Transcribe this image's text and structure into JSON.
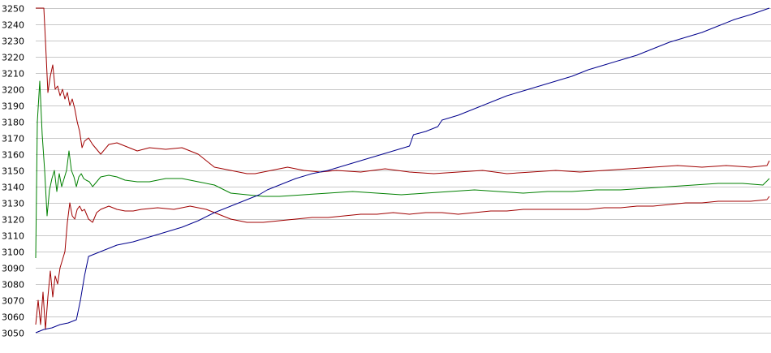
{
  "chart_data": {
    "type": "line",
    "title": "",
    "xlabel": "",
    "ylabel": "",
    "ylim": [
      3050,
      3250
    ],
    "yticks": [
      3050,
      3060,
      3070,
      3080,
      3090,
      3100,
      3110,
      3120,
      3130,
      3140,
      3150,
      3160,
      3170,
      3180,
      3190,
      3200,
      3210,
      3220,
      3230,
      3240,
      3250
    ],
    "grid": true,
    "legend": "none",
    "colors": {
      "grid": "#c8c8c8",
      "background": "#ffffff",
      "axis_text": "#000000"
    },
    "series": [
      {
        "key": "upper",
        "color": "#a00000",
        "x": [
          0,
          10,
          12,
          15,
          18,
          21,
          24,
          27,
          30,
          33,
          36,
          39,
          42,
          45,
          48,
          51,
          54,
          57,
          60,
          65,
          70,
          80,
          90,
          100,
          110,
          125,
          140,
          160,
          180,
          200,
          220,
          240,
          260,
          270,
          290,
          310,
          330,
          350,
          370,
          400,
          430,
          460,
          490,
          520,
          550,
          580,
          610,
          640,
          670,
          700,
          730,
          760,
          790,
          820,
          850,
          880,
          900,
          903
        ],
        "y": [
          3250,
          3250,
          3230,
          3198,
          3208,
          3215,
          3200,
          3202,
          3196,
          3200,
          3194,
          3198,
          3190,
          3194,
          3188,
          3180,
          3174,
          3164,
          3168,
          3170,
          3166,
          3160,
          3166,
          3167,
          3165,
          3162,
          3164,
          3163,
          3164,
          3160,
          3152,
          3150,
          3148,
          3148,
          3150,
          3152,
          3150,
          3149,
          3150,
          3149,
          3151,
          3149,
          3148,
          3149,
          3150,
          3148,
          3149,
          3150,
          3149,
          3150,
          3151,
          3152,
          3153,
          3152,
          3153,
          3152,
          3153,
          3156
        ]
      },
      {
        "key": "middle",
        "color": "#008000",
        "x": [
          0,
          2,
          5,
          8,
          11,
          14,
          17,
          20,
          23,
          26,
          29,
          32,
          35,
          38,
          41,
          44,
          47,
          50,
          53,
          56,
          59,
          62,
          66,
          70,
          80,
          90,
          100,
          110,
          125,
          140,
          160,
          180,
          200,
          220,
          240,
          260,
          280,
          300,
          330,
          360,
          390,
          420,
          450,
          480,
          510,
          540,
          570,
          600,
          630,
          660,
          690,
          720,
          750,
          780,
          810,
          840,
          870,
          895,
          903
        ],
        "y": [
          3096,
          3180,
          3205,
          3172,
          3150,
          3122,
          3138,
          3145,
          3150,
          3137,
          3148,
          3140,
          3145,
          3150,
          3162,
          3150,
          3146,
          3140,
          3146,
          3148,
          3145,
          3144,
          3143,
          3140,
          3146,
          3147,
          3146,
          3144,
          3143,
          3143,
          3145,
          3145,
          3143,
          3141,
          3136,
          3135,
          3134,
          3134,
          3135,
          3136,
          3137,
          3136,
          3135,
          3136,
          3137,
          3138,
          3137,
          3136,
          3137,
          3137,
          3138,
          3138,
          3139,
          3140,
          3141,
          3142,
          3142,
          3141,
          3145
        ]
      },
      {
        "key": "lower",
        "color": "#a00000",
        "x": [
          0,
          3,
          6,
          9,
          12,
          15,
          18,
          21,
          24,
          27,
          30,
          33,
          36,
          39,
          42,
          45,
          48,
          51,
          54,
          57,
          60,
          65,
          70,
          75,
          80,
          85,
          90,
          95,
          100,
          110,
          120,
          130,
          150,
          170,
          190,
          210,
          230,
          240,
          260,
          280,
          300,
          320,
          340,
          360,
          380,
          400,
          420,
          440,
          460,
          480,
          500,
          520,
          540,
          560,
          580,
          600,
          620,
          640,
          660,
          680,
          700,
          720,
          740,
          760,
          780,
          800,
          820,
          840,
          860,
          880,
          900,
          903
        ],
        "y": [
          3055,
          3070,
          3055,
          3075,
          3052,
          3072,
          3088,
          3072,
          3085,
          3080,
          3090,
          3095,
          3100,
          3118,
          3130,
          3122,
          3120,
          3126,
          3128,
          3125,
          3126,
          3120,
          3118,
          3124,
          3126,
          3127,
          3128,
          3127,
          3126,
          3125,
          3125,
          3126,
          3127,
          3126,
          3128,
          3126,
          3122,
          3120,
          3118,
          3118,
          3119,
          3120,
          3121,
          3121,
          3122,
          3123,
          3123,
          3124,
          3123,
          3124,
          3124,
          3123,
          3124,
          3125,
          3125,
          3126,
          3126,
          3126,
          3126,
          3126,
          3127,
          3127,
          3128,
          3128,
          3129,
          3130,
          3130,
          3131,
          3131,
          3131,
          3132,
          3134
        ]
      },
      {
        "key": "trend",
        "color": "#00008c",
        "x": [
          0,
          10,
          20,
          30,
          40,
          50,
          55,
          60,
          65,
          70,
          80,
          90,
          100,
          120,
          140,
          160,
          180,
          200,
          220,
          240,
          250,
          260,
          270,
          275,
          285,
          300,
          320,
          340,
          360,
          380,
          400,
          420,
          440,
          460,
          465,
          480,
          495,
          500,
          520,
          540,
          560,
          580,
          600,
          620,
          640,
          660,
          680,
          700,
          720,
          740,
          760,
          780,
          800,
          820,
          840,
          860,
          880,
          903
        ],
        "y": [
          3050,
          3052,
          3053,
          3055,
          3056,
          3058,
          3070,
          3085,
          3097,
          3098,
          3100,
          3102,
          3104,
          3106,
          3109,
          3112,
          3115,
          3119,
          3124,
          3128,
          3130,
          3132,
          3134,
          3135,
          3138,
          3141,
          3145,
          3148,
          3150,
          3153,
          3156,
          3159,
          3162,
          3165,
          3172,
          3174,
          3177,
          3181,
          3184,
          3188,
          3192,
          3196,
          3199,
          3202,
          3205,
          3208,
          3212,
          3215,
          3218,
          3221,
          3225,
          3229,
          3232,
          3235,
          3239,
          3243,
          3246,
          3250
        ]
      }
    ]
  }
}
